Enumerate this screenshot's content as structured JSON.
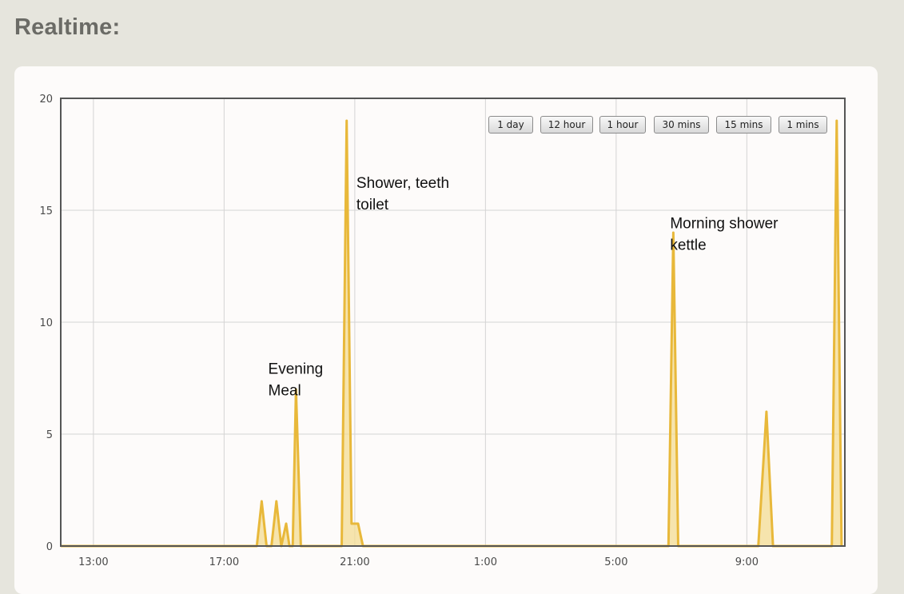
{
  "page": {
    "title": "Realtime:"
  },
  "range_buttons": [
    "1 day",
    "12 hour",
    "1 hour",
    "30 mins",
    "15 mins",
    "1 mins"
  ],
  "colors": {
    "series_line": "#e8b83a",
    "series_fill": "#f3dc93",
    "grid": "#d4d4d4",
    "frame": "#555555"
  },
  "chart_data": {
    "type": "area",
    "title": "",
    "xlabel": "",
    "ylabel": "",
    "ylim": [
      0,
      20
    ],
    "yticks": [
      0,
      5,
      10,
      15,
      20
    ],
    "xlim": [
      12.0,
      36.0
    ],
    "xticks": [
      13,
      17,
      21,
      25,
      29,
      33
    ],
    "xtick_labels": [
      "13:00",
      "17:00",
      "21:00",
      "1:00",
      "5:00",
      "9:00"
    ],
    "grid": true,
    "series": [
      {
        "x": [
          12.0,
          18.0,
          18.15,
          18.3,
          18.45,
          18.6,
          18.75,
          18.9,
          19.0,
          19.1,
          19.2,
          19.35,
          19.5,
          19.75,
          20.6,
          20.75,
          20.9,
          21.0,
          21.1,
          21.25,
          21.4,
          30.6,
          30.75,
          30.9,
          33.35,
          33.6,
          33.8,
          35.6,
          35.75,
          35.9
        ],
        "values": [
          0,
          0,
          2,
          0,
          0,
          2,
          0,
          1,
          0,
          0,
          7,
          0,
          0,
          0,
          0,
          19,
          1,
          1,
          1,
          0,
          0,
          0,
          14,
          0,
          0,
          6,
          0,
          0,
          19,
          0
        ]
      }
    ],
    "annotations": [
      {
        "lines": [
          "Evening",
          "Meal"
        ],
        "x": 18.35,
        "y": 7.7
      },
      {
        "lines": [
          "Shower, teeth",
          "toilet"
        ],
        "x": 21.05,
        "y": 16.0
      },
      {
        "lines": [
          "Morning shower",
          "kettle"
        ],
        "x": 30.65,
        "y": 14.2
      }
    ]
  }
}
